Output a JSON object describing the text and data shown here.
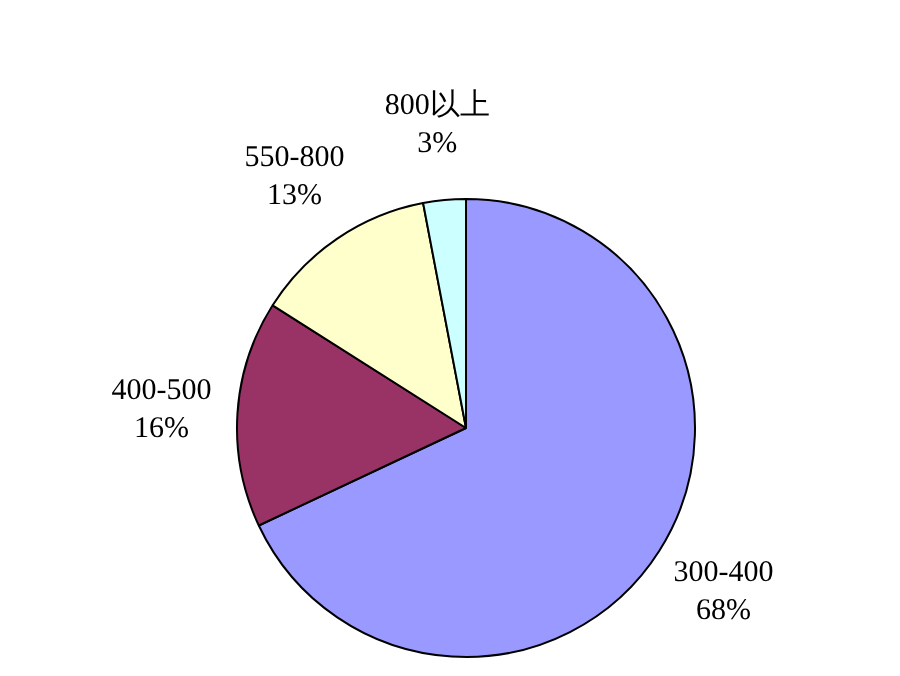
{
  "chart_data": {
    "type": "pie",
    "categories": [
      "300-400",
      "400-500",
      "550-800",
      "800以上"
    ],
    "values": [
      68,
      16,
      13,
      3
    ],
    "colors": [
      "#9999ff",
      "#993366",
      "#ffffcc",
      "#ccffff"
    ],
    "value_labels": [
      "68%",
      "16%",
      "13%",
      "3%"
    ],
    "legend": false
  }
}
